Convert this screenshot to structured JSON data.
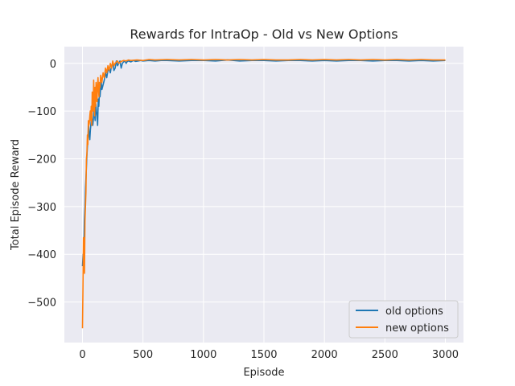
{
  "chart_data": {
    "type": "line",
    "title": "Rewards for IntraOp - Old vs New Options",
    "xlabel": "Episode",
    "ylabel": "Total Episode Reward",
    "xlim": [
      -150,
      3150
    ],
    "ylim": [
      -585,
      35
    ],
    "x_ticks": [
      0,
      500,
      1000,
      1500,
      2000,
      2500,
      3000
    ],
    "y_ticks": [
      0,
      -100,
      -200,
      -300,
      -400,
      -500
    ],
    "grid": true,
    "legend_position": "lower-right",
    "colors": {
      "background": "#eaeaf2",
      "grid": "#ffffff",
      "old_options": "#1f77b4",
      "new_options": "#ff7f0e"
    },
    "series": [
      {
        "name": "old options",
        "key": "old",
        "x": [
          0,
          5,
          10,
          15,
          20,
          25,
          30,
          35,
          40,
          45,
          50,
          55,
          60,
          65,
          70,
          75,
          80,
          85,
          90,
          95,
          100,
          105,
          110,
          115,
          120,
          125,
          130,
          135,
          140,
          145,
          150,
          155,
          160,
          170,
          180,
          190,
          200,
          210,
          220,
          230,
          240,
          250,
          260,
          270,
          280,
          290,
          300,
          310,
          320,
          330,
          340,
          350,
          360,
          370,
          380,
          400,
          420,
          440,
          460,
          480,
          500,
          550,
          600,
          650,
          700,
          800,
          900,
          1000,
          1100,
          1200,
          1300,
          1400,
          1500,
          1600,
          1700,
          1800,
          1900,
          2000,
          2100,
          2200,
          2300,
          2400,
          2500,
          2600,
          2700,
          2800,
          2900,
          3000
        ],
        "values": [
          -425,
          -400,
          -420,
          -330,
          -300,
          -260,
          -230,
          -200,
          -175,
          -155,
          -130,
          -150,
          -160,
          -140,
          -125,
          -110,
          -120,
          -130,
          -115,
          -95,
          -110,
          -120,
          -85,
          -100,
          -110,
          -130,
          -75,
          -90,
          -60,
          -70,
          -50,
          -40,
          -55,
          -45,
          -35,
          -20,
          -30,
          -15,
          -10,
          -20,
          -5,
          0,
          -15,
          -10,
          5,
          -5,
          0,
          5,
          -10,
          0,
          3,
          5,
          0,
          4,
          5,
          3,
          6,
          4,
          5,
          6,
          5,
          6,
          5,
          6,
          6,
          5,
          6,
          6,
          5,
          7,
          5,
          6,
          6,
          5,
          6,
          6,
          5,
          6,
          5,
          6,
          6,
          5,
          6,
          6,
          5,
          6,
          5,
          6
        ]
      },
      {
        "name": "new options",
        "key": "new",
        "x": [
          0,
          4,
          8,
          12,
          16,
          20,
          24,
          28,
          32,
          36,
          40,
          44,
          48,
          52,
          56,
          60,
          64,
          68,
          72,
          76,
          80,
          84,
          88,
          92,
          96,
          100,
          104,
          108,
          112,
          116,
          120,
          124,
          128,
          132,
          136,
          140,
          145,
          150,
          160,
          170,
          180,
          190,
          200,
          210,
          220,
          230,
          240,
          250,
          260,
          270,
          280,
          290,
          300,
          320,
          340,
          360,
          380,
          400,
          450,
          500,
          550,
          600,
          700,
          800,
          900,
          1000,
          1100,
          1200,
          1300,
          1400,
          1500,
          1600,
          1700,
          1800,
          1900,
          2000,
          2100,
          2200,
          2300,
          2400,
          2500,
          2600,
          2700,
          2800,
          2900,
          3000
        ],
        "values": [
          -555,
          -470,
          -365,
          -400,
          -440,
          -330,
          -300,
          -270,
          -200,
          -190,
          -150,
          -170,
          -120,
          -130,
          -125,
          -110,
          -100,
          -120,
          -90,
          -130,
          -60,
          -80,
          -100,
          -35,
          -70,
          -110,
          -50,
          -90,
          -40,
          -60,
          -80,
          -45,
          -30,
          -55,
          -70,
          -40,
          -50,
          -25,
          -40,
          -20,
          -30,
          -10,
          -20,
          -5,
          -15,
          0,
          -10,
          5,
          -5,
          0,
          3,
          5,
          0,
          4,
          6,
          5,
          7,
          6,
          7,
          6,
          8,
          7,
          8,
          7,
          8,
          7,
          8,
          7,
          8,
          7,
          8,
          7,
          7,
          8,
          7,
          8,
          7,
          8,
          7,
          8,
          7,
          8,
          7,
          8,
          7,
          7
        ]
      }
    ]
  }
}
